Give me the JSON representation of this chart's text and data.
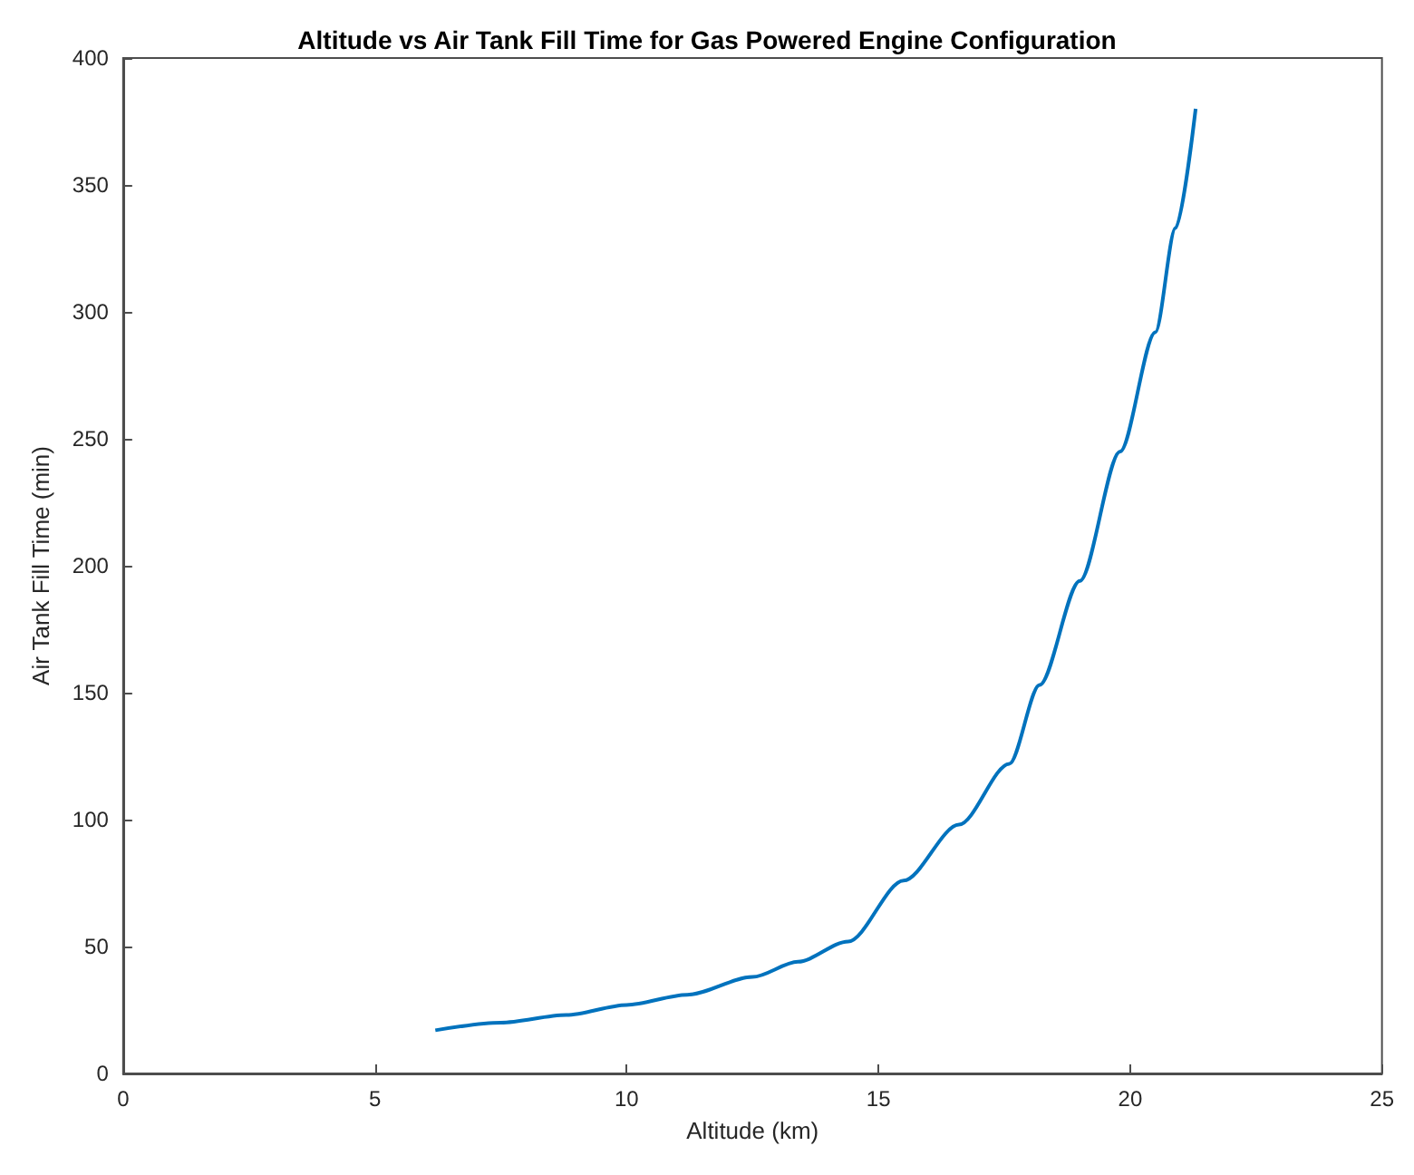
{
  "chart_data": {
    "type": "line",
    "title": "Altitude vs Air Tank Fill Time for Gas Powered Engine Configuration",
    "xlabel": "Altitude (km)",
    "ylabel": "Air Tank Fill Time (min)",
    "x": [
      6.2,
      7.5,
      8.8,
      10,
      11.2,
      12.5,
      13.4,
      14.4,
      15.5,
      16.6,
      17.6,
      18.2,
      19,
      19.8,
      20.5,
      20.9,
      21.3
    ],
    "series": [
      {
        "color": "#0072bd",
        "values": [
          17,
          20,
          23,
          27,
          31,
          38,
          44,
          52,
          76,
          98,
          122,
          153,
          194,
          245,
          292,
          333,
          380
        ]
      }
    ],
    "xlim": [
      0,
      25
    ],
    "xticks": [
      0,
      5,
      10,
      15,
      20,
      25
    ],
    "ylim": [
      0,
      400
    ],
    "yticks": [
      0,
      50,
      100,
      150,
      200,
      250,
      300,
      350,
      400
    ],
    "grid": false,
    "marker": "none",
    "line_style": "solid"
  }
}
